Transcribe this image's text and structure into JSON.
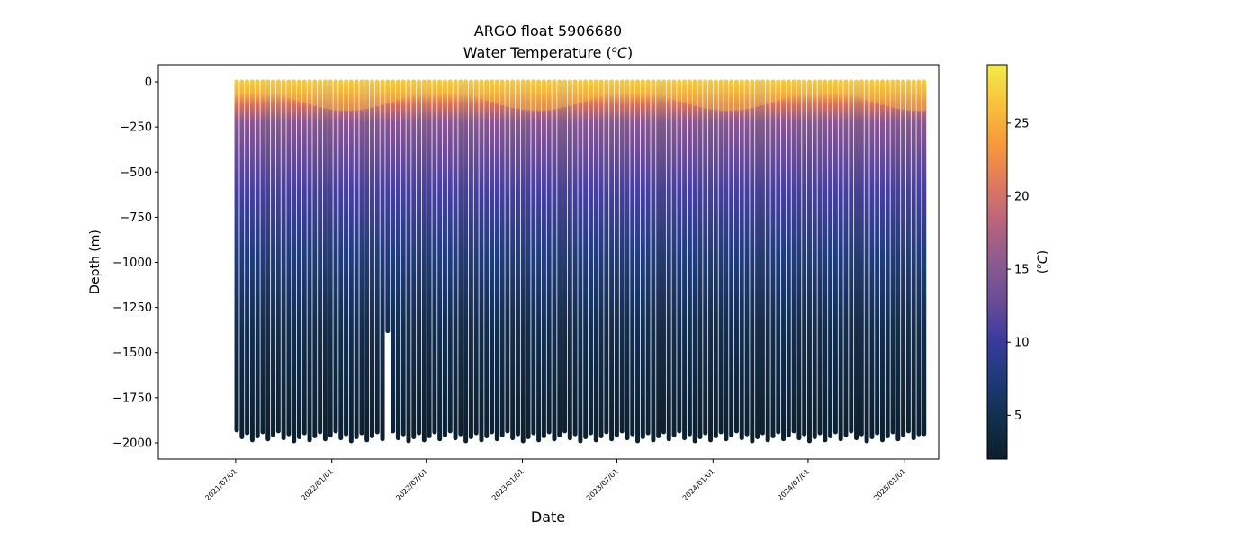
{
  "chart_data": {
    "type": "scatter",
    "title": "ARGO float 5906680",
    "subtitle_main": "Water Temperature (",
    "subtitle_unit": "o",
    "subtitle_unit_c": "C",
    "subtitle_close": ")",
    "xlabel": "Date",
    "ylabel": "Depth (m)",
    "ylim": [
      -2090,
      95
    ],
    "y_ticks": [
      {
        "value": 0,
        "label": "0"
      },
      {
        "value": -250,
        "label": "−250"
      },
      {
        "value": -500,
        "label": "−500"
      },
      {
        "value": -750,
        "label": "−750"
      },
      {
        "value": -1000,
        "label": "−1000"
      },
      {
        "value": -1250,
        "label": "−1250"
      },
      {
        "value": -1500,
        "label": "−1500"
      },
      {
        "value": -1750,
        "label": "−1750"
      },
      {
        "value": -2000,
        "label": "−2000"
      }
    ],
    "x_range_days": [
      -148,
      1346
    ],
    "x_ticks": [
      {
        "day": 0,
        "label": "2021/07/01"
      },
      {
        "day": 184,
        "label": "2022/01/01"
      },
      {
        "day": 365,
        "label": "2022/07/01"
      },
      {
        "day": 549,
        "label": "2023/01/01"
      },
      {
        "day": 730,
        "label": "2023/07/01"
      },
      {
        "day": 914,
        "label": "2024/01/01"
      },
      {
        "day": 1096,
        "label": "2024/07/01"
      },
      {
        "day": 1280,
        "label": "2025/01/01"
      }
    ],
    "profiles": {
      "first_day": 2,
      "last_day": 1318,
      "count": 133,
      "max_depth_range": [
        -1990,
        -1935
      ],
      "short_profile": {
        "day": 295,
        "max_depth": -1380
      }
    },
    "mixed_layer_depth_range": [
      -150,
      -45
    ],
    "colorbar": {
      "label": "(",
      "label_unit": "o",
      "label_unit_c": "C",
      "label_close": ")",
      "range": [
        2,
        29
      ],
      "ticks": [
        {
          "value": 5,
          "label": "5"
        },
        {
          "value": 10,
          "label": "10"
        },
        {
          "value": 15,
          "label": "15"
        },
        {
          "value": 20,
          "label": "20"
        },
        {
          "value": 25,
          "label": "25"
        }
      ],
      "colormap": [
        "#0b1f2e",
        "#112f4c",
        "#1e3a78",
        "#3a3a9c",
        "#6a4c97",
        "#8c5a8e",
        "#b9647d",
        "#e07a5c",
        "#f79a3a",
        "#f7c23c",
        "#f2ec4a"
      ]
    }
  }
}
